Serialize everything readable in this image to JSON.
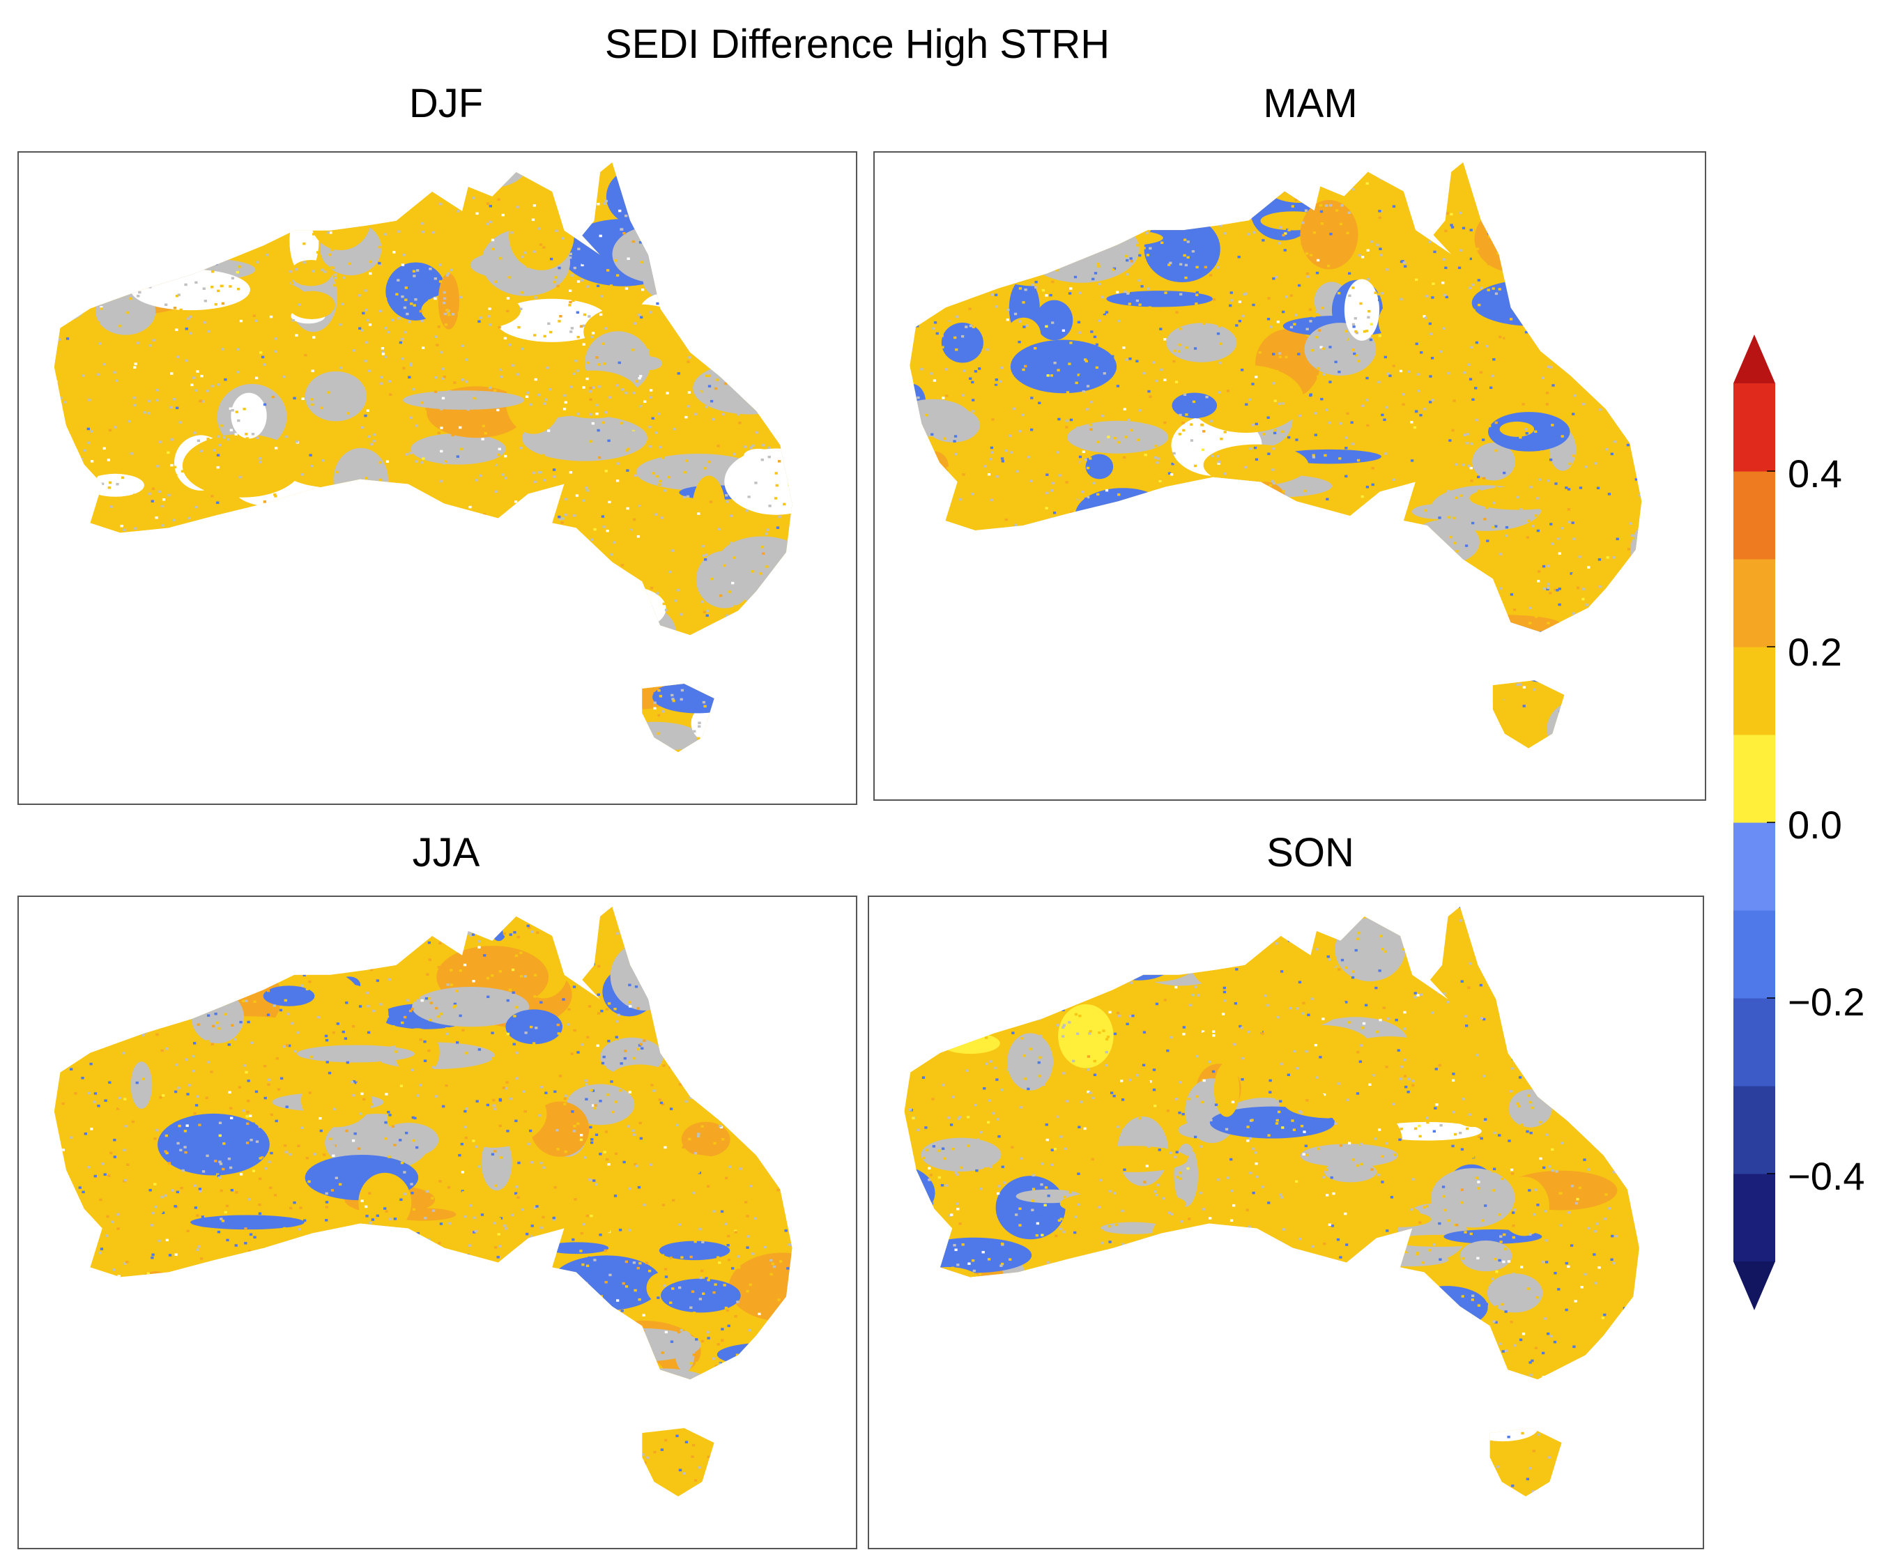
{
  "figure": {
    "title": "SEDI Difference High STRH"
  },
  "panels": [
    {
      "id": "djf",
      "label": "DJF",
      "dominant": [
        [
          "#f7c513",
          0.42
        ],
        [
          "#c0c0c0",
          0.38
        ],
        [
          "#ffffff",
          0.1
        ],
        [
          "#f5a623",
          0.05
        ],
        [
          "#4f78e8",
          0.04
        ],
        [
          "#ffef3a",
          0.01
        ]
      ]
    },
    {
      "id": "mam",
      "label": "MAM",
      "dominant": [
        [
          "#f7c513",
          0.45
        ],
        [
          "#c0c0c0",
          0.24
        ],
        [
          "#4f78e8",
          0.19
        ],
        [
          "#f5a623",
          0.07
        ],
        [
          "#ffffff",
          0.03
        ],
        [
          "#ffef3a",
          0.02
        ]
      ]
    },
    {
      "id": "jja",
      "label": "JJA",
      "dominant": [
        [
          "#f7c513",
          0.38
        ],
        [
          "#f5a623",
          0.17
        ],
        [
          "#c0c0c0",
          0.2
        ],
        [
          "#4f78e8",
          0.18
        ],
        [
          "#ffffff",
          0.04
        ],
        [
          "#ffef3a",
          0.03
        ]
      ]
    },
    {
      "id": "son",
      "label": "SON",
      "dominant": [
        [
          "#f7c513",
          0.52
        ],
        [
          "#c0c0c0",
          0.26
        ],
        [
          "#4f78e8",
          0.12
        ],
        [
          "#ffffff",
          0.05
        ],
        [
          "#f5a623",
          0.03
        ],
        [
          "#ffef3a",
          0.02
        ]
      ]
    }
  ],
  "colorbar": {
    "ticks": [
      "0.4",
      "0.2",
      "0.0",
      "−0.2",
      "−0.4"
    ],
    "tick_values": [
      0.4,
      0.2,
      0.0,
      -0.2,
      -0.4
    ],
    "range": [
      -0.5,
      0.5
    ],
    "extend": "both",
    "colors": [
      "#1a1f7a",
      "#2b3f9e",
      "#3d5bc7",
      "#4f78e8",
      "#6a8df5",
      "#ffef3a",
      "#f7c513",
      "#f5a623",
      "#ee7b1f",
      "#e02a1c"
    ],
    "under_color": "#121660",
    "over_color": "#b81414"
  }
}
